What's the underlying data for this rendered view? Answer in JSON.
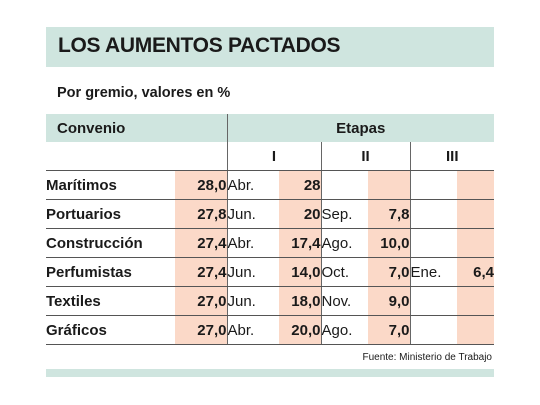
{
  "title": "LOS AUMENTOS PACTADOS",
  "subtitle": "Por gremio, valores en %",
  "header": {
    "convenio": "Convenio",
    "etapas": "Etapas",
    "stages": [
      "I",
      "II",
      "III"
    ]
  },
  "rows": [
    {
      "name": "Marítimos",
      "total": "28,0",
      "s1_month": "Abr.",
      "s1_value": "28",
      "s2_month": "",
      "s2_value": "",
      "s3_month": "",
      "s3_value": ""
    },
    {
      "name": "Portuarios",
      "total": "27,8",
      "s1_month": "Jun.",
      "s1_value": "20",
      "s2_month": "Sep.",
      "s2_value": "7,8",
      "s3_month": "",
      "s3_value": ""
    },
    {
      "name": "Construcción",
      "total": "27,4",
      "s1_month": "Abr.",
      "s1_value": "17,4",
      "s2_month": "Ago.",
      "s2_value": "10,0",
      "s3_month": "",
      "s3_value": ""
    },
    {
      "name": "Perfumistas",
      "total": "27,4",
      "s1_month": "Jun.",
      "s1_value": "14,0",
      "s2_month": "Oct.",
      "s2_value": "7,0",
      "s3_month": "Ene.",
      "s3_value": "6,4"
    },
    {
      "name": "Textiles",
      "total": "27,0",
      "s1_month": "Jun.",
      "s1_value": "18,0",
      "s2_month": "Nov.",
      "s2_value": "9,0",
      "s3_month": "",
      "s3_value": ""
    },
    {
      "name": "Gráficos",
      "total": "27,0",
      "s1_month": "Abr.",
      "s1_value": "20,0",
      "s2_month": "Ago.",
      "s2_value": "7,0",
      "s3_month": "",
      "s3_value": ""
    }
  ],
  "source": "Fuente: Ministerio de Trabajo",
  "colors": {
    "header_band": "#cfe5df",
    "value_highlight": "#fbd9c8"
  }
}
